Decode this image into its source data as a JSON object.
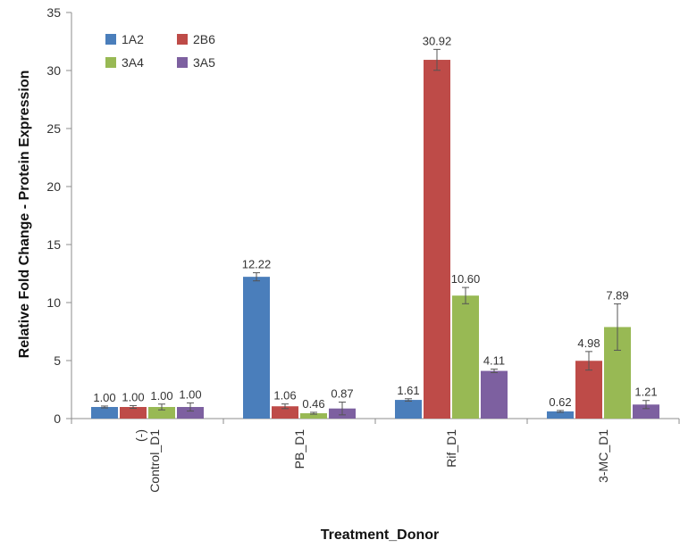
{
  "chart_data": {
    "type": "bar",
    "categories": [
      "(-)\nControl_D1",
      "PB_D1",
      "Rif_D1",
      "3-MC_D1"
    ],
    "series": [
      {
        "name": "1A2",
        "values": [
          1.0,
          12.22,
          1.61,
          0.62
        ],
        "labels": [
          "1.00",
          "12.22",
          "1.61",
          "0.62"
        ],
        "errors": [
          0.08,
          0.35,
          0.1,
          0.08
        ],
        "color": "#4a7ebb"
      },
      {
        "name": "2B6",
        "values": [
          1.0,
          1.06,
          30.92,
          4.98
        ],
        "labels": [
          "1.00",
          "1.06",
          "30.92",
          "4.98"
        ],
        "errors": [
          0.12,
          0.2,
          0.9,
          0.8
        ],
        "color": "#be4b48"
      },
      {
        "name": "3A4",
        "values": [
          1.0,
          0.46,
          10.6,
          7.89
        ],
        "labels": [
          "1.00",
          "0.46",
          "10.60",
          "7.89"
        ],
        "errors": [
          0.25,
          0.08,
          0.7,
          2.0
        ],
        "color": "#98b954"
      },
      {
        "name": "3A5",
        "values": [
          1.0,
          0.87,
          4.11,
          1.21
        ],
        "labels": [
          "1.00",
          "0.87",
          "4.11",
          "1.21"
        ],
        "errors": [
          0.35,
          0.55,
          0.15,
          0.35
        ],
        "color": "#7d60a0"
      }
    ],
    "xlabel": "Treatment_Donor",
    "ylabel": "Relative Fold Change - Protein Expression",
    "ylim": [
      0,
      35
    ],
    "yticks": [
      0,
      5,
      10,
      15,
      20,
      25,
      30,
      35
    ],
    "grid": false,
    "legend_position": "top-left",
    "error_bars": true
  }
}
